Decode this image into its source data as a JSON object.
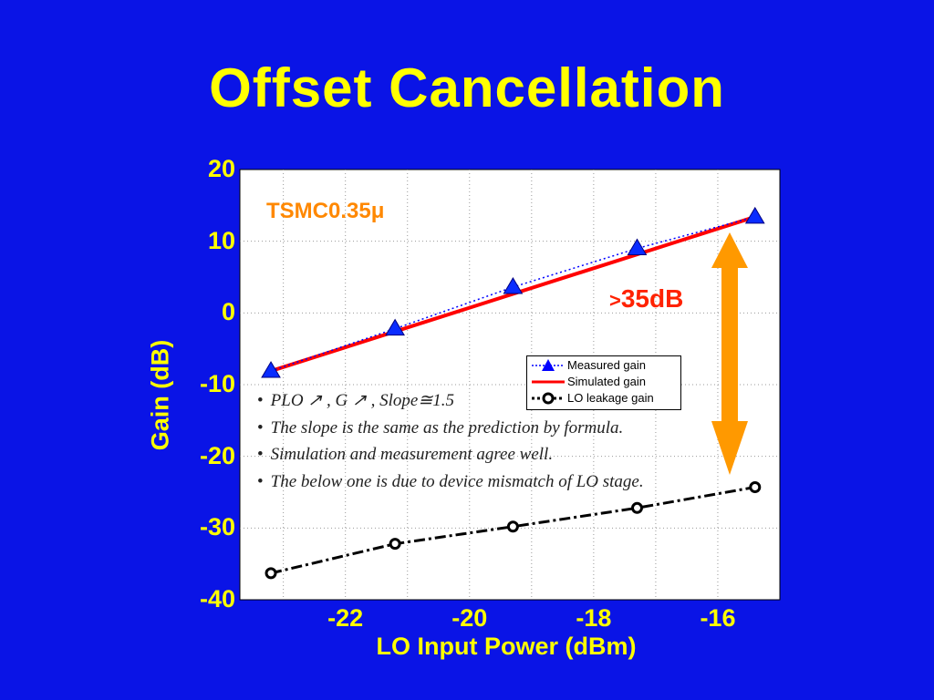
{
  "slide": {
    "title": "Offset Cancellation"
  },
  "annotations": {
    "tech": "TSMC0.35μ",
    "gain_prefix": ">",
    "gain_value": "35dB"
  },
  "notes": [
    {
      "bullet": "•",
      "text": "PLO ↗ , G ↗ , Slope≅1.5"
    },
    {
      "bullet": "•",
      "text": "The slope is the same as the prediction by formula."
    },
    {
      "bullet": "•",
      "text": "Simulation and measurement agree well."
    },
    {
      "bullet": "•",
      "text": "The below one is due to device mismatch of LO stage."
    }
  ],
  "colors": {
    "background": "#0a14e6",
    "text": "#ffff00",
    "simulated": "#ff0000",
    "measured": "#0000ff",
    "leakage": "#000000",
    "arrow": "#ff9900"
  },
  "chart_data": {
    "type": "line",
    "title": "",
    "xlabel": "LO Input Power (dBm)",
    "ylabel": "Gain (dB)",
    "xlim": [
      -23.7,
      -15.0
    ],
    "ylim": [
      -40,
      20
    ],
    "xticks": [
      -22,
      -20,
      -18,
      -16
    ],
    "xtick_labels": [
      "-22",
      "-20",
      "-18",
      "-16"
    ],
    "yticks": [
      20,
      10,
      0,
      -10,
      -20,
      -30,
      -40
    ],
    "ytick_labels": [
      "20",
      "10",
      "0",
      "-10",
      "-20",
      "-30",
      "-40"
    ],
    "grid": true,
    "legend_position": "center-right",
    "series": [
      {
        "name": "Measured gain",
        "marker": "triangle",
        "x": [
          -23.2,
          -21.2,
          -19.3,
          -17.3,
          -15.4
        ],
        "y": [
          -8.1,
          -2.2,
          3.6,
          9.0,
          13.4
        ]
      },
      {
        "name": "Simulated gain",
        "marker": "none",
        "x": [
          -23.2,
          -15.4
        ],
        "y": [
          -8.1,
          13.4
        ]
      },
      {
        "name": "LO leakage gain",
        "marker": "circle",
        "x": [
          -23.2,
          -21.2,
          -19.3,
          -17.3,
          -15.4
        ],
        "y": [
          -36.3,
          -32.2,
          -29.8,
          -27.2,
          -24.3
        ]
      }
    ]
  }
}
